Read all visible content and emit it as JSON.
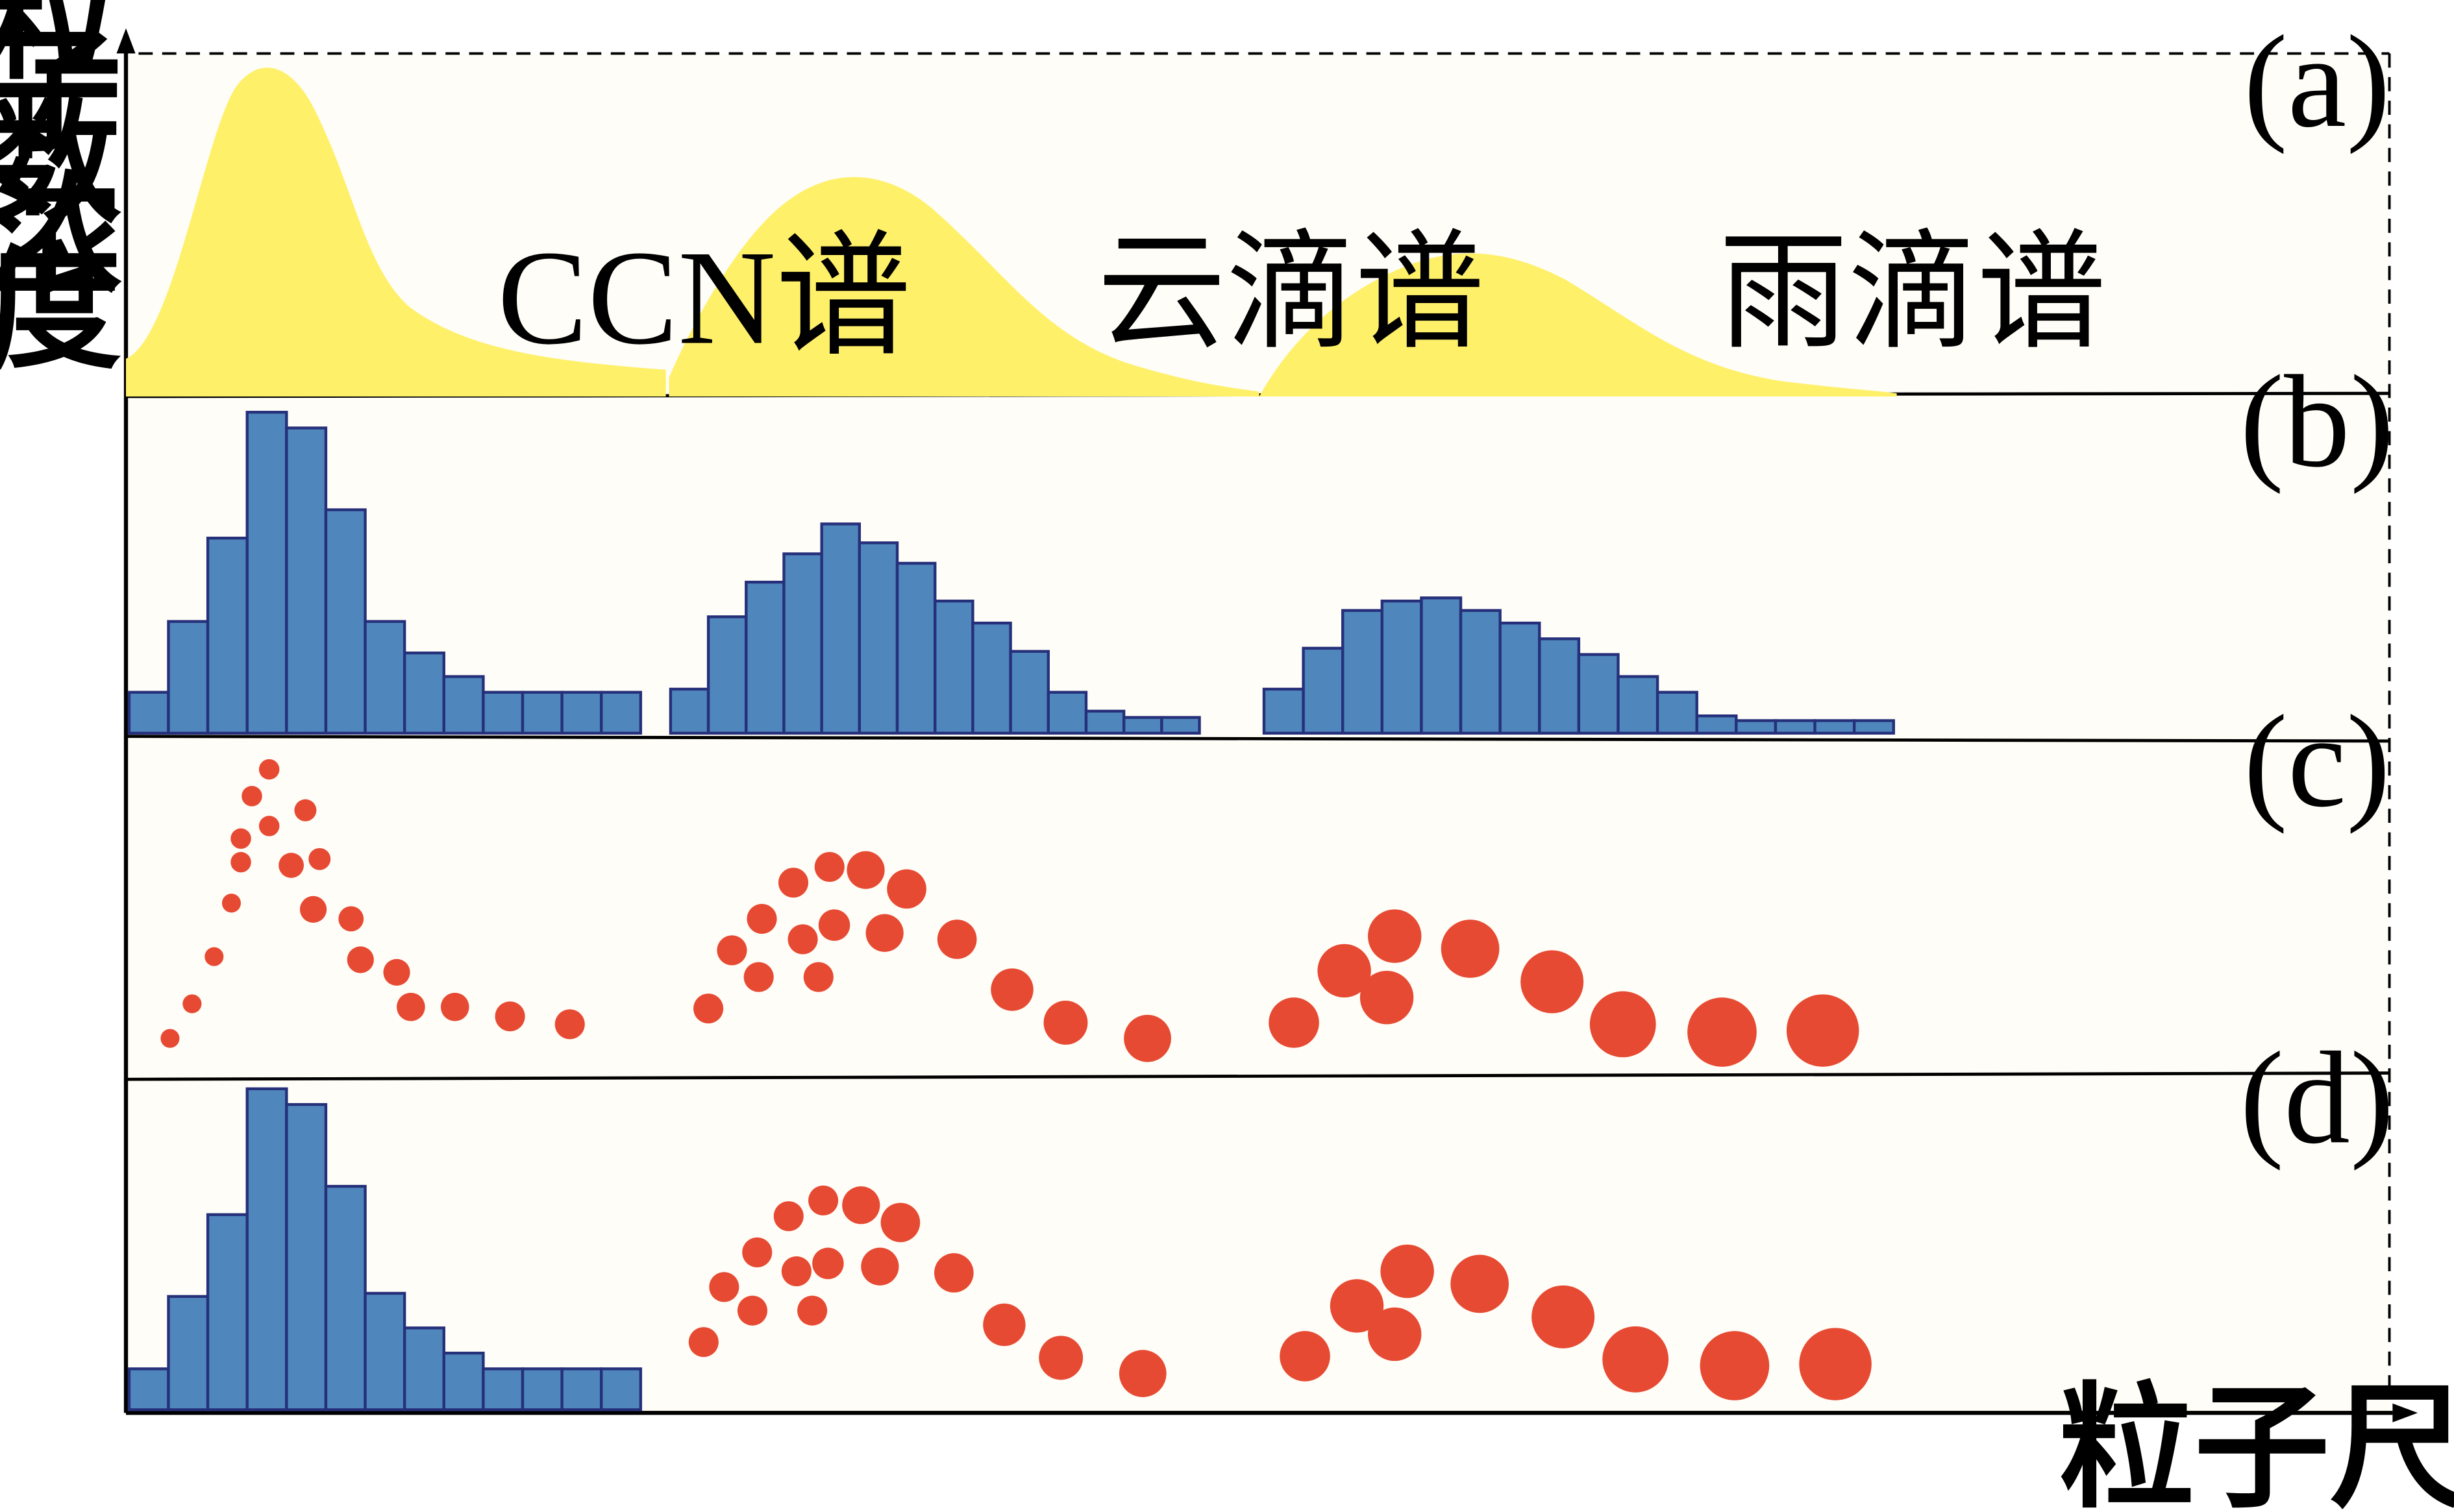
{
  "axes": {
    "y_label_chars": [
      "粒",
      "子",
      "数",
      "浓",
      "度"
    ],
    "x_label": "粒子尺度"
  },
  "panel_labels": [
    "(a)",
    "(b)",
    "(c)",
    "(d)"
  ],
  "spectra_labels": {
    "ccn": "CCN谱",
    "cloud": "云滴谱",
    "rain": "雨滴谱"
  },
  "colors": {
    "curve_fill": "#fff06a",
    "bar_fill": "#4f86bc",
    "bar_stroke": "#26307a",
    "dot_fill": "#e74a33",
    "axis": "#000000"
  }
}
